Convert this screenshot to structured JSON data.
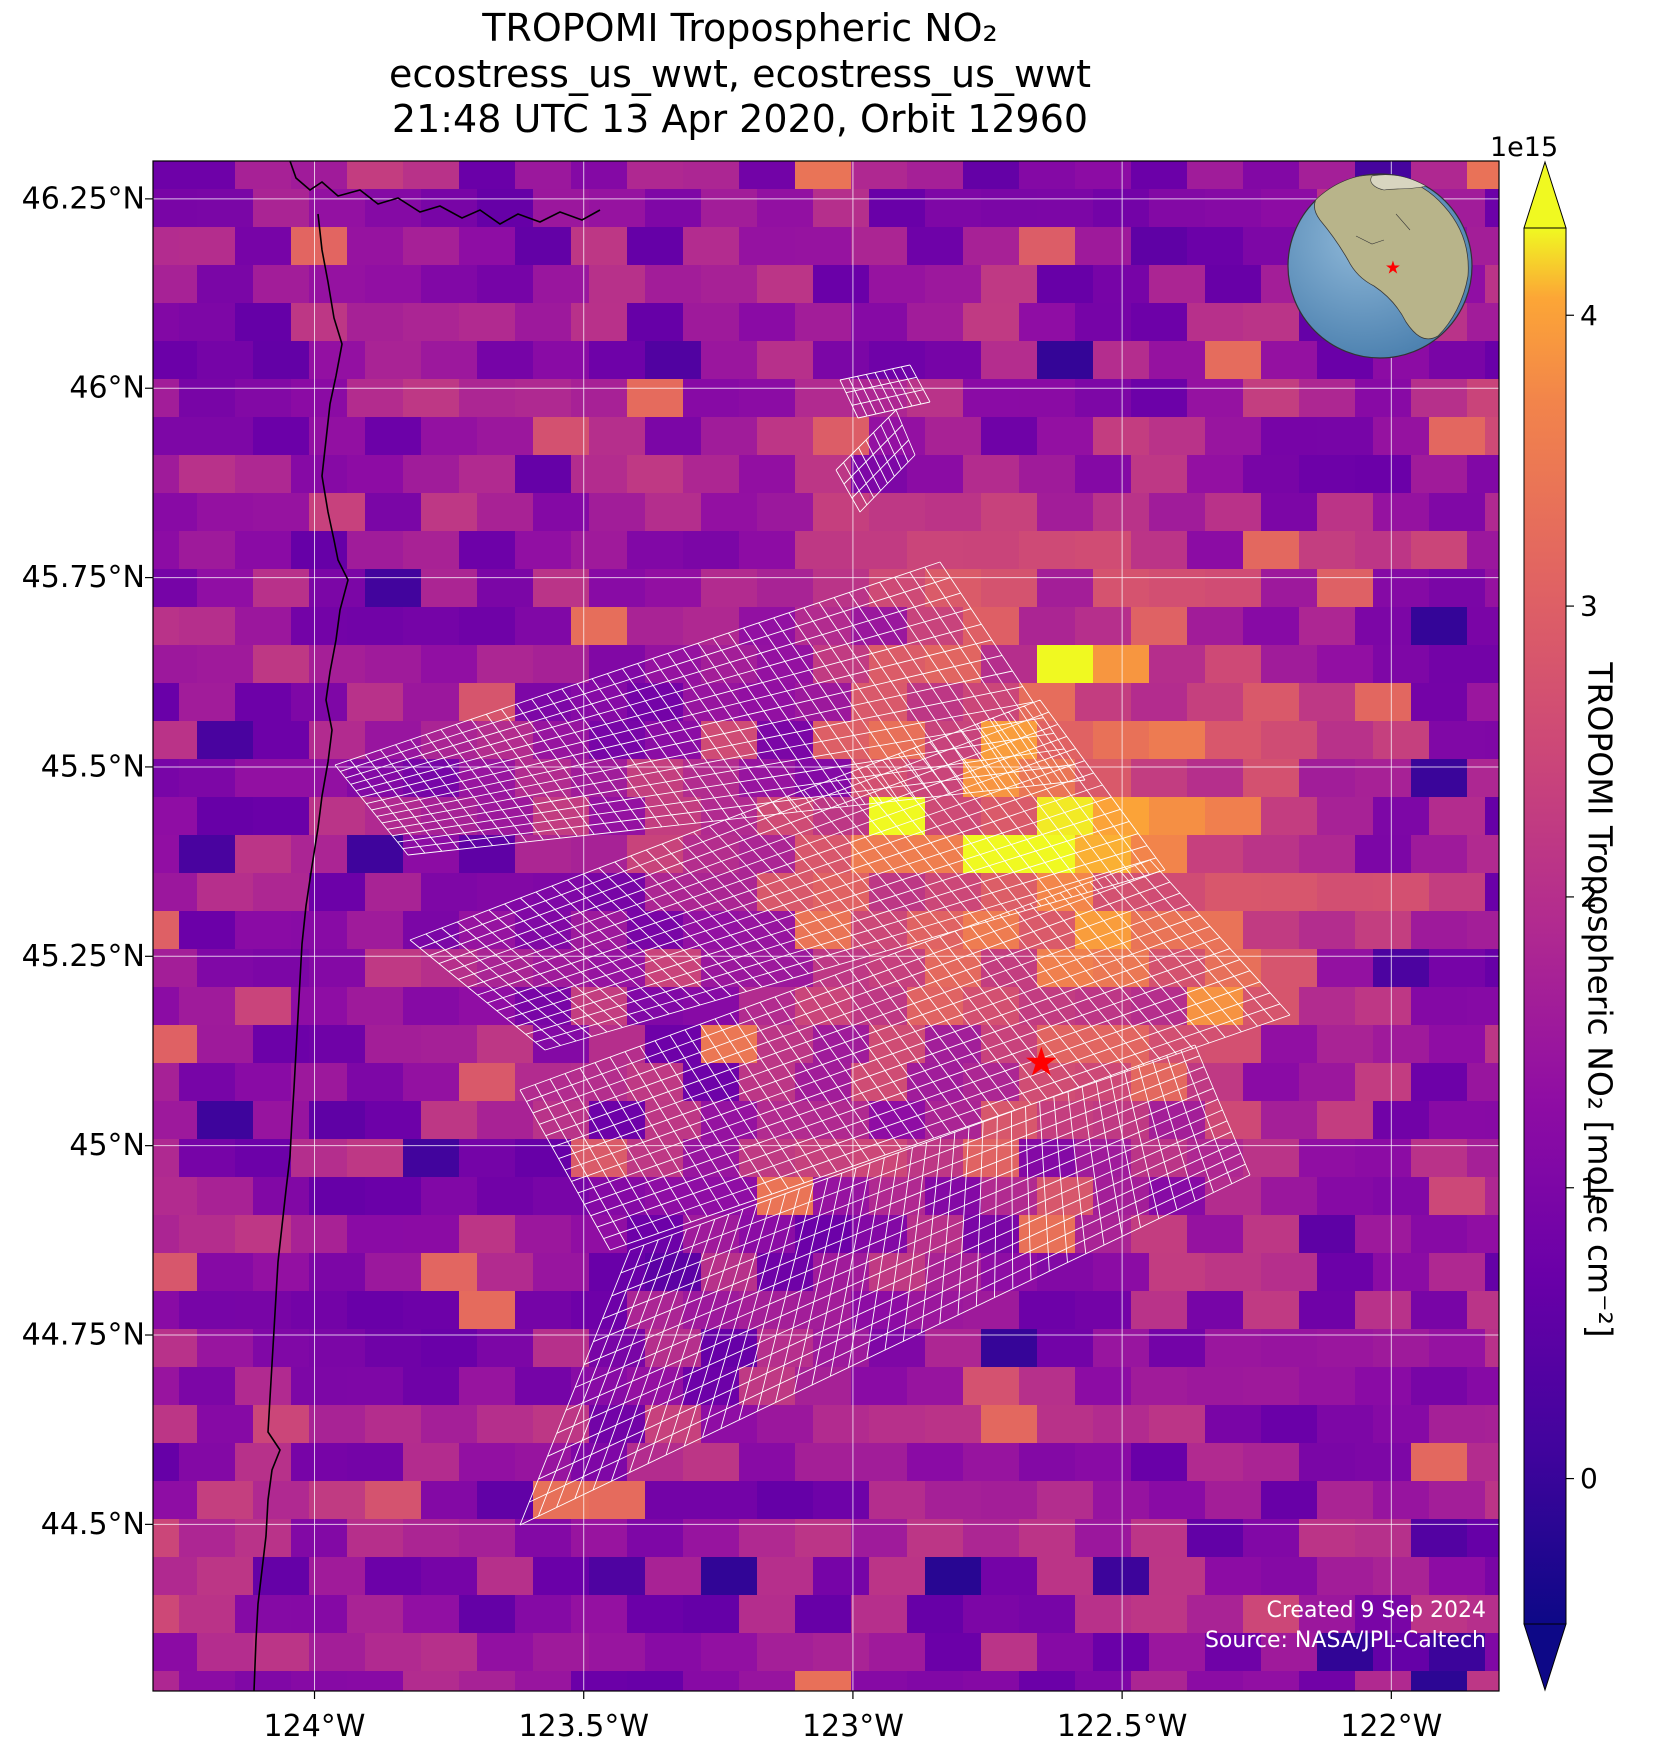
{
  "figure": {
    "title_line1": "TROPOMI Tropospheric NO₂",
    "title_line2": "ecostress_us_wwt, ecostress_us_wwt",
    "title_line3": "21:48 UTC 13 Apr 2020, Orbit 12960",
    "credit_line1": "Created 9 Sep 2024",
    "credit_line2": "Source: NASA/JPL-Caltech"
  },
  "map": {
    "projection": "PlateCarree",
    "extent_lon": [
      -124.3,
      -121.8
    ],
    "extent_lat": [
      44.28,
      46.3
    ],
    "lat_ticks": [
      {
        "value": 46.25,
        "label": "46.25°N"
      },
      {
        "value": 46.0,
        "label": "46°N"
      },
      {
        "value": 45.75,
        "label": "45.75°N"
      },
      {
        "value": 45.5,
        "label": "45.5°N"
      },
      {
        "value": 45.25,
        "label": "45.25°N"
      },
      {
        "value": 45.0,
        "label": "45°N"
      },
      {
        "value": 44.75,
        "label": "44.75°N"
      },
      {
        "value": 44.5,
        "label": "44.5°N"
      }
    ],
    "lon_ticks": [
      {
        "value": -124.0,
        "label": "124°W"
      },
      {
        "value": -123.5,
        "label": "123.5°W"
      },
      {
        "value": -123.0,
        "label": "123°W"
      },
      {
        "value": -122.5,
        "label": "122.5°W"
      },
      {
        "value": -122.0,
        "label": "122°W"
      }
    ],
    "gridlines": true,
    "target_marker": {
      "lon": -122.65,
      "lat": 45.11,
      "symbol": "star",
      "color": "#ff0000"
    },
    "coastline_color": "#000000",
    "overlay_grid_color": "#ffffff",
    "inset_globe": {
      "location": "top-right",
      "center": "North America",
      "marker_color": "#ff0000"
    }
  },
  "colorbar": {
    "label": "TROPOMI Tropospheric NO₂ [molec cm⁻²]",
    "exponent": "1e15",
    "colormap": "plasma",
    "vmin": -0.5,
    "vmax": 4.3,
    "ticks": [
      {
        "value": 0,
        "label": "0"
      },
      {
        "value": 1,
        "label": "1"
      },
      {
        "value": 2,
        "label": "2"
      },
      {
        "value": 3,
        "label": "3"
      },
      {
        "value": 4,
        "label": "4"
      }
    ],
    "extend": "both"
  }
}
